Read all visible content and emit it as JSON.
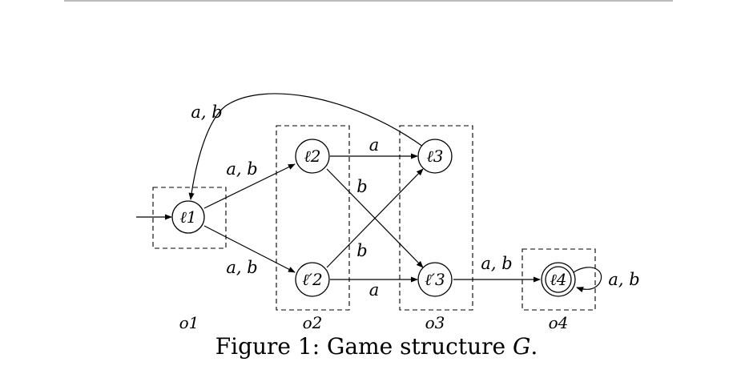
{
  "diagram": {
    "states": [
      {
        "id": "l1",
        "label": "ℓ1",
        "initial": true,
        "accepting": false
      },
      {
        "id": "l2",
        "label": "ℓ2",
        "initial": false,
        "accepting": false
      },
      {
        "id": "l2p",
        "label": "ℓ′2",
        "initial": false,
        "accepting": false
      },
      {
        "id": "l3",
        "label": "ℓ3",
        "initial": false,
        "accepting": false
      },
      {
        "id": "l3p",
        "label": "ℓ′3",
        "initial": false,
        "accepting": false
      },
      {
        "id": "l4",
        "label": "ℓ4",
        "initial": false,
        "accepting": true
      }
    ],
    "edges": [
      {
        "from": "l1",
        "to": "l2",
        "label": "a, b"
      },
      {
        "from": "l1",
        "to": "l2p",
        "label": "a, b"
      },
      {
        "from": "l2",
        "to": "l3",
        "label": "a"
      },
      {
        "from": "l2",
        "to": "l3p",
        "label": "b"
      },
      {
        "from": "l2p",
        "to": "l3",
        "label": "b"
      },
      {
        "from": "l2p",
        "to": "l3p",
        "label": "a"
      },
      {
        "from": "l3",
        "to": "l1",
        "label": "a, b"
      },
      {
        "from": "l3p",
        "to": "l4",
        "label": "a, b"
      },
      {
        "from": "l4",
        "to": "l4",
        "label": "a, b"
      }
    ],
    "observations": [
      {
        "id": "o1",
        "label": "o1"
      },
      {
        "id": "o2",
        "label": "o2"
      },
      {
        "id": "o3",
        "label": "o3"
      },
      {
        "id": "o4",
        "label": "o4"
      }
    ]
  },
  "caption": {
    "prefix": "Figure 1:  Game structure ",
    "symbol": "G",
    "suffix": "."
  }
}
